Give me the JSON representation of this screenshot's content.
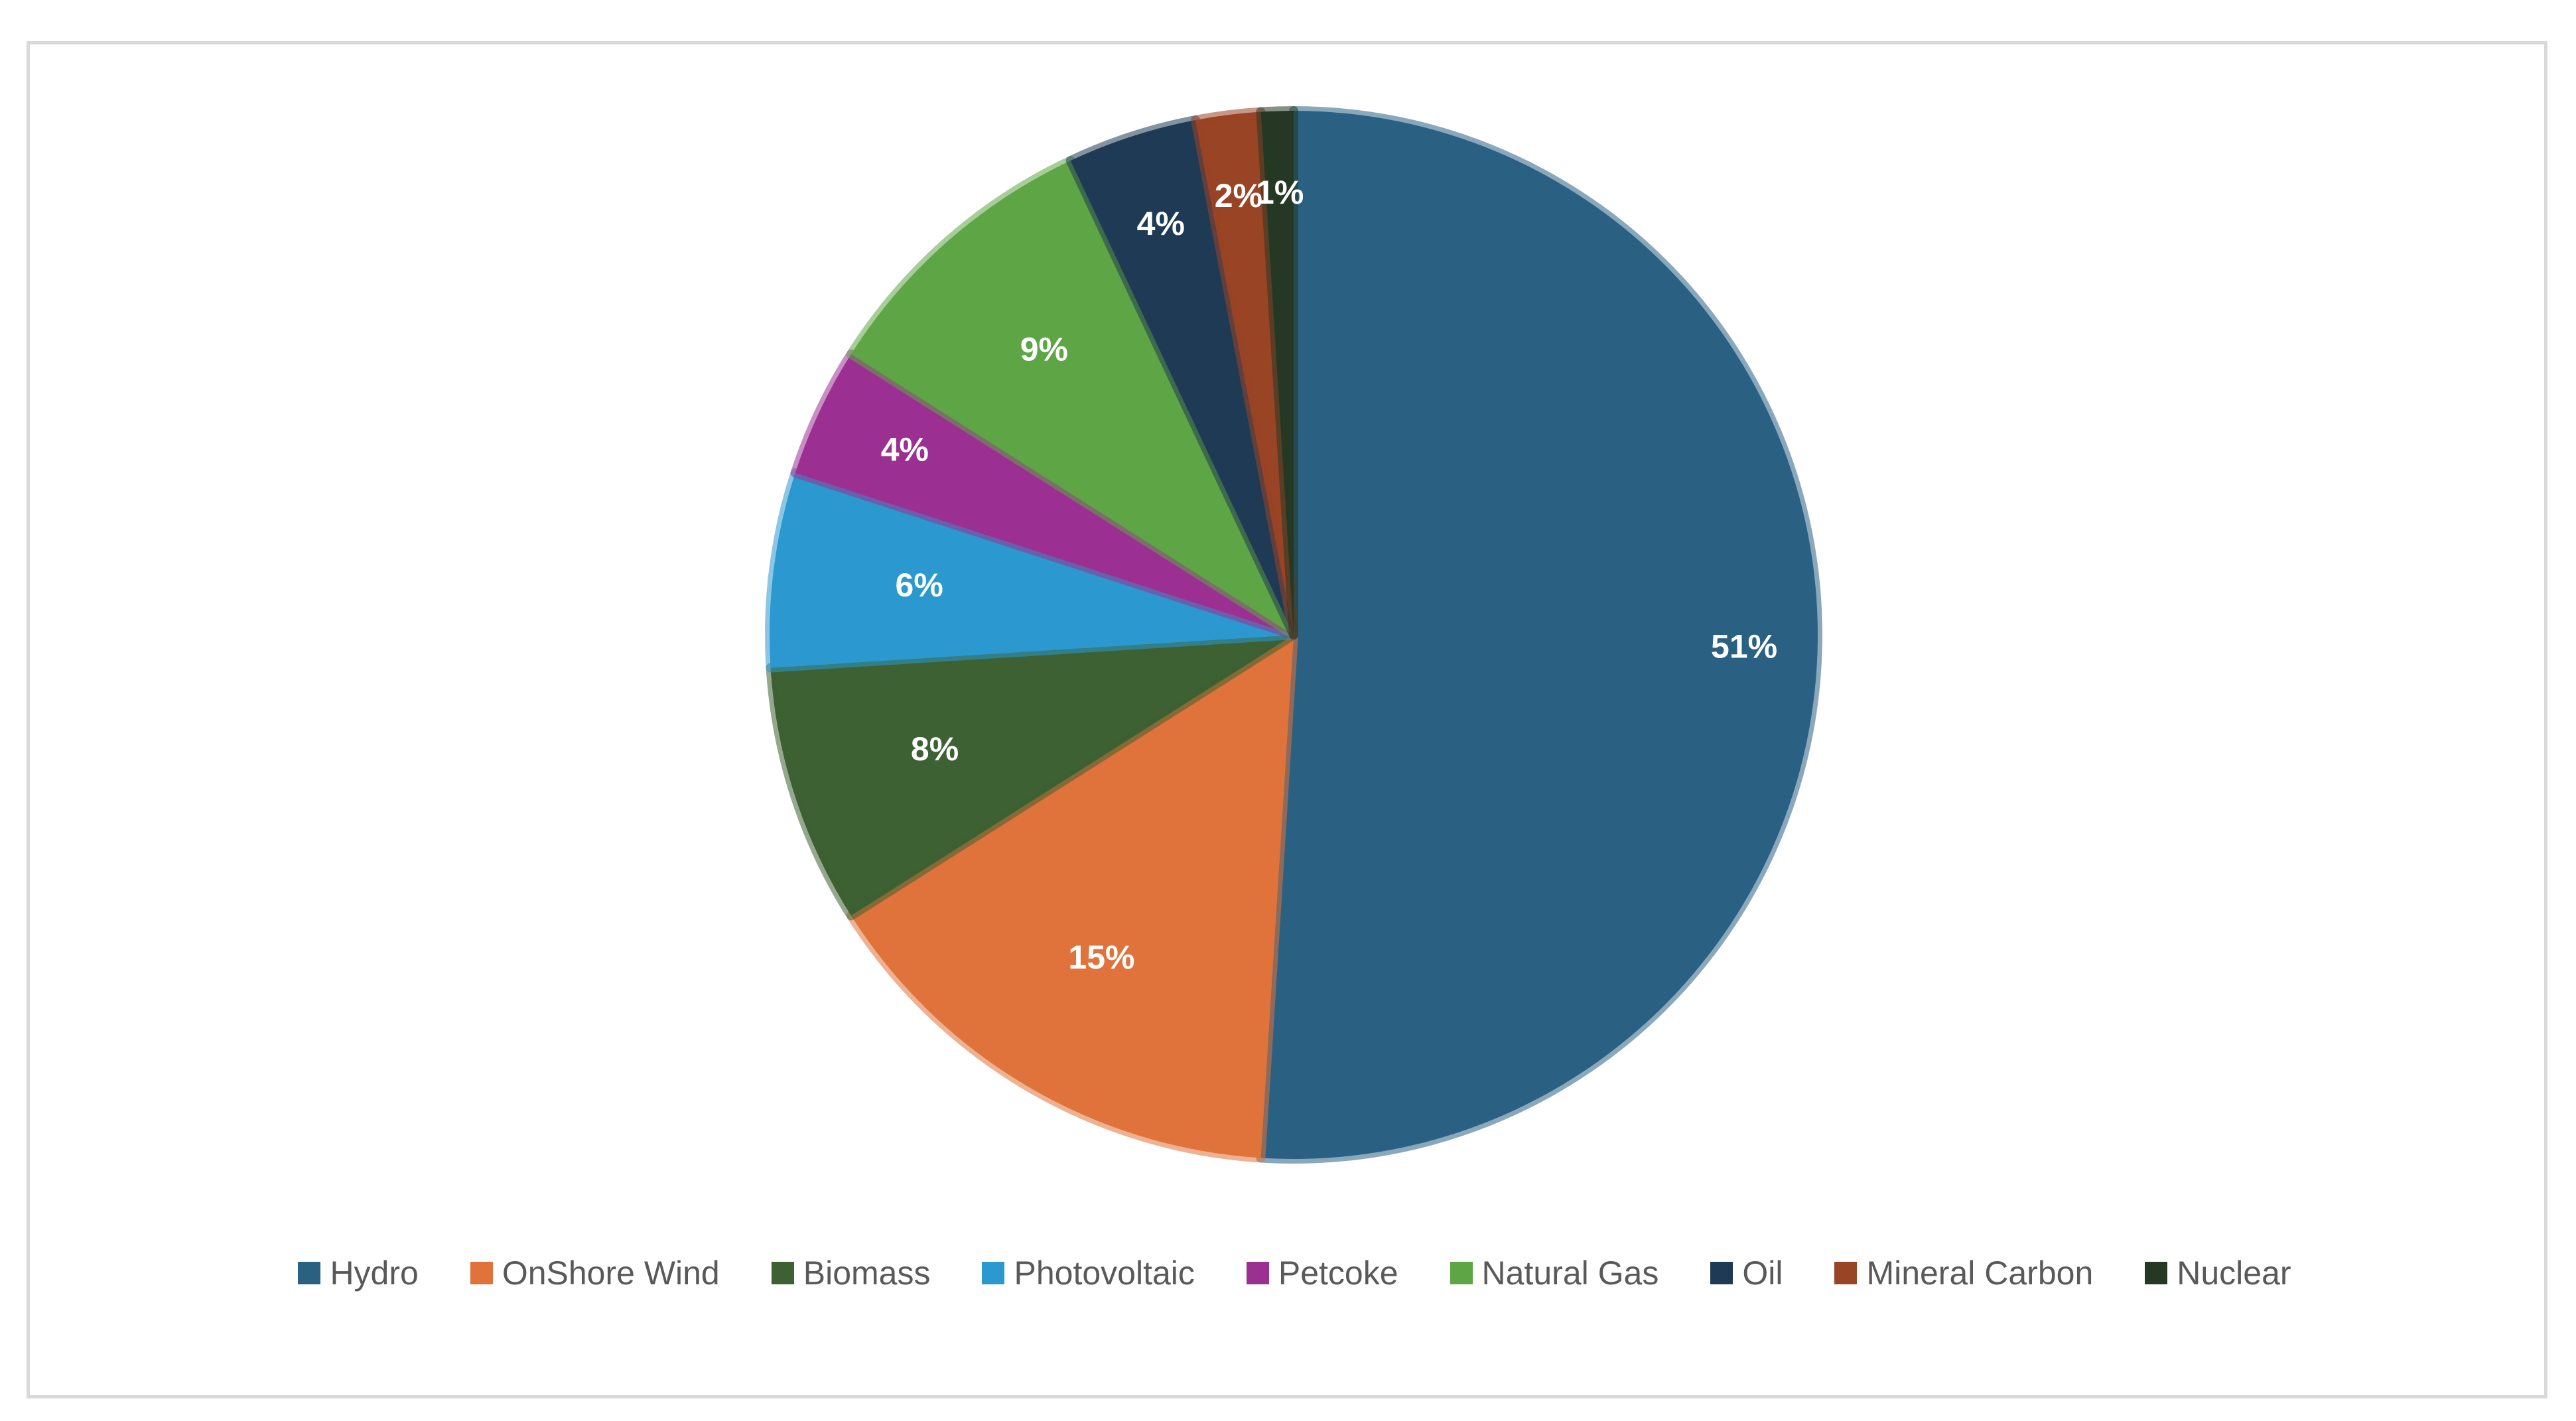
{
  "chart_data": {
    "type": "pie",
    "title": "",
    "slices": [
      {
        "name": "Hydro",
        "value": 51,
        "label": "51%",
        "color": "#2a6183"
      },
      {
        "name": "OnShore Wind",
        "value": 15,
        "label": "15%",
        "color": "#e0733b"
      },
      {
        "name": "Biomass",
        "value": 8,
        "label": "8%",
        "color": "#3d6132"
      },
      {
        "name": "Photovoltaic",
        "value": 6,
        "label": "6%",
        "color": "#2b99cf"
      },
      {
        "name": "Petcoke",
        "value": 4,
        "label": "4%",
        "color": "#9b3092"
      },
      {
        "name": "Natural Gas",
        "value": 9,
        "label": "9%",
        "color": "#5ea545"
      },
      {
        "name": "Oil",
        "value": 4,
        "label": "4%",
        "color": "#1f3a54"
      },
      {
        "name": "Mineral Carbon",
        "value": 2,
        "label": "2%",
        "color": "#994424"
      },
      {
        "name": "Nuclear",
        "value": 1,
        "label": "1%",
        "color": "#253824"
      }
    ],
    "legend_position": "bottom",
    "start_angle_deg": 0,
    "direction": "clockwise"
  },
  "legend": {
    "items": [
      {
        "label": "Hydro",
        "color": "#2a6183"
      },
      {
        "label": "OnShore Wind",
        "color": "#e0733b"
      },
      {
        "label": "Biomass",
        "color": "#3d6132"
      },
      {
        "label": "Photovoltaic",
        "color": "#2b99cf"
      },
      {
        "label": "Petcoke",
        "color": "#9b3092"
      },
      {
        "label": "Natural Gas",
        "color": "#5ea545"
      },
      {
        "label": "Oil",
        "color": "#1f3a54"
      },
      {
        "label": "Mineral Carbon",
        "color": "#994424"
      },
      {
        "label": "Nuclear",
        "color": "#253824"
      }
    ]
  },
  "colors": {
    "frame_border": "#d9d9d9",
    "legend_text": "#595959",
    "data_label_text": "#ffffff"
  }
}
